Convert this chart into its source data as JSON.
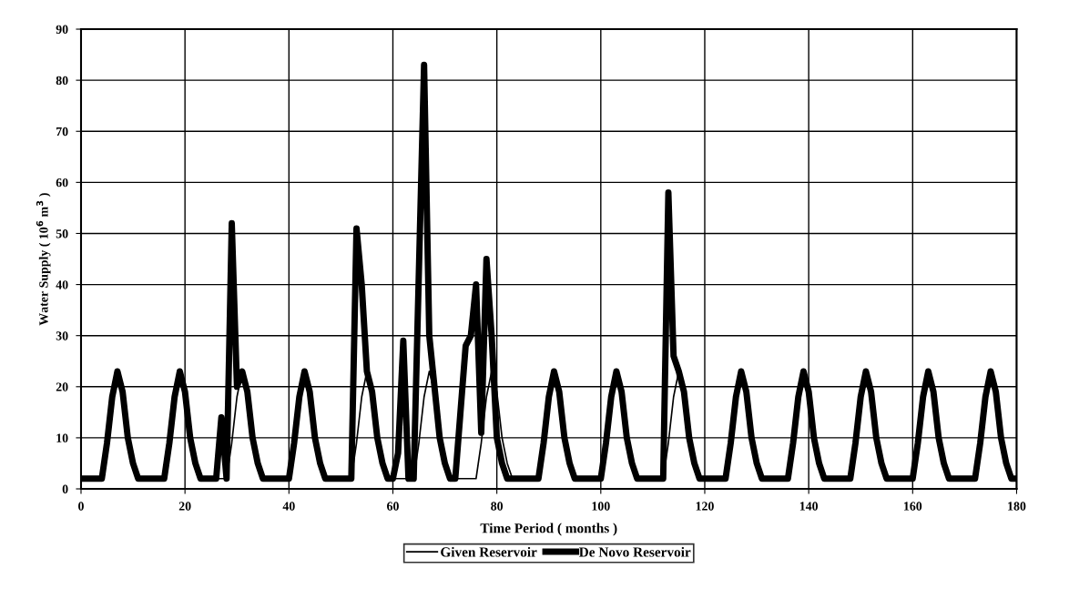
{
  "chart_data": {
    "type": "line",
    "xlabel": "Time Period ( months )",
    "ylabel": "Water Supply ( 10$^{6}$ m$^{3}$ )",
    "xlim": [
      0,
      180
    ],
    "xticks": [
      0,
      20,
      40,
      60,
      80,
      100,
      120,
      140,
      160,
      180
    ],
    "ylim": [
      0,
      90
    ],
    "yticks": [
      0,
      10,
      20,
      30,
      40,
      50,
      60,
      70,
      80,
      90
    ],
    "grid": true,
    "legend": "bottom",
    "marker": "none",
    "line_style": "solid",
    "series": [
      {
        "name": "Given Reservoir",
        "color": "#000000",
        "x": [
          0,
          4,
          5,
          6,
          7,
          8,
          9,
          10,
          11,
          16,
          17,
          18,
          19,
          20,
          21,
          22,
          23,
          28,
          29,
          30,
          31,
          32,
          33,
          34,
          35,
          40,
          41,
          42,
          43,
          44,
          45,
          46,
          47,
          52,
          53,
          54,
          55,
          56,
          57,
          58,
          59,
          64,
          65,
          66,
          67,
          68,
          69,
          70,
          71,
          76,
          77,
          78,
          79,
          80,
          81,
          82,
          83,
          88,
          89,
          90,
          91,
          92,
          93,
          94,
          95,
          100,
          101,
          102,
          103,
          104,
          105,
          106,
          107,
          112,
          113,
          114,
          115,
          116,
          117,
          118,
          119,
          124,
          125,
          126,
          127,
          128,
          129,
          130,
          131,
          136,
          137,
          138,
          139,
          140,
          141,
          142,
          143,
          148,
          149,
          150,
          151,
          152,
          153,
          154,
          155,
          160,
          161,
          162,
          163,
          164,
          165,
          166,
          167,
          172,
          173,
          174,
          175,
          176,
          177,
          178,
          179,
          180
        ],
        "values": [
          2,
          2,
          9,
          18,
          23,
          19,
          10,
          5,
          2,
          2,
          9,
          18,
          23,
          19,
          10,
          5,
          2,
          2,
          9,
          18,
          23,
          19,
          10,
          5,
          2,
          2,
          9,
          18,
          23,
          19,
          10,
          5,
          2,
          2,
          9,
          18,
          23,
          19,
          10,
          5,
          2,
          2,
          9,
          18,
          23,
          19,
          10,
          5,
          2,
          2,
          9,
          18,
          23,
          19,
          10,
          5,
          2,
          2,
          9,
          18,
          23,
          19,
          10,
          5,
          2,
          2,
          9,
          18,
          23,
          19,
          10,
          5,
          2,
          2,
          9,
          18,
          23,
          19,
          10,
          5,
          2,
          2,
          9,
          18,
          23,
          19,
          10,
          5,
          2,
          2,
          9,
          18,
          23,
          19,
          10,
          5,
          2,
          2,
          9,
          18,
          23,
          19,
          10,
          5,
          2,
          2,
          9,
          18,
          23,
          19,
          10,
          5,
          2,
          2,
          9,
          18,
          23,
          19,
          10,
          5,
          2,
          2
        ]
      },
      {
        "name": "De Novo Reservoir",
        "color": "#000000",
        "x": [
          0,
          4,
          5,
          6,
          7,
          8,
          9,
          10,
          11,
          16,
          17,
          18,
          19,
          20,
          21,
          22,
          23,
          26,
          27,
          28,
          29,
          30,
          31,
          32,
          33,
          34,
          35,
          40,
          41,
          42,
          43,
          44,
          45,
          46,
          47,
          52,
          53,
          54,
          55,
          56,
          57,
          58,
          59,
          60,
          61,
          62,
          63,
          64,
          66,
          67,
          68,
          69,
          70,
          71,
          72,
          73,
          74,
          75,
          76,
          77,
          78,
          79,
          80,
          81,
          82,
          88,
          89,
          90,
          91,
          92,
          93,
          94,
          95,
          100,
          101,
          102,
          103,
          104,
          105,
          106,
          107,
          112,
          113,
          114,
          115,
          116,
          117,
          118,
          119,
          124,
          125,
          126,
          127,
          128,
          129,
          130,
          131,
          136,
          137,
          138,
          139,
          140,
          141,
          142,
          143,
          148,
          149,
          150,
          151,
          152,
          153,
          154,
          155,
          160,
          161,
          162,
          163,
          164,
          165,
          166,
          167,
          172,
          173,
          174,
          175,
          176,
          177,
          178,
          179,
          180
        ],
        "values": [
          2,
          2,
          9,
          18,
          23,
          19,
          10,
          5,
          2,
          2,
          9,
          18,
          23,
          19,
          10,
          5,
          2,
          2,
          14,
          2,
          52,
          20,
          23,
          19,
          10,
          5,
          2,
          2,
          9,
          18,
          23,
          19,
          10,
          5,
          2,
          2,
          51,
          40,
          23,
          19,
          10,
          5,
          2,
          2,
          7,
          29,
          2,
          2,
          83,
          30,
          20,
          10,
          5,
          2,
          2,
          15,
          28,
          30,
          40,
          11,
          45,
          30,
          10,
          5,
          2,
          2,
          9,
          18,
          23,
          19,
          10,
          5,
          2,
          2,
          9,
          18,
          23,
          19,
          10,
          5,
          2,
          2,
          58,
          26,
          23,
          19,
          10,
          5,
          2,
          2,
          9,
          18,
          23,
          19,
          10,
          5,
          2,
          2,
          9,
          18,
          23,
          19,
          10,
          5,
          2,
          2,
          9,
          18,
          23,
          19,
          10,
          5,
          2,
          2,
          9,
          18,
          23,
          19,
          10,
          5,
          2,
          2,
          9,
          18,
          23,
          19,
          10,
          5,
          2,
          2
        ]
      }
    ]
  }
}
